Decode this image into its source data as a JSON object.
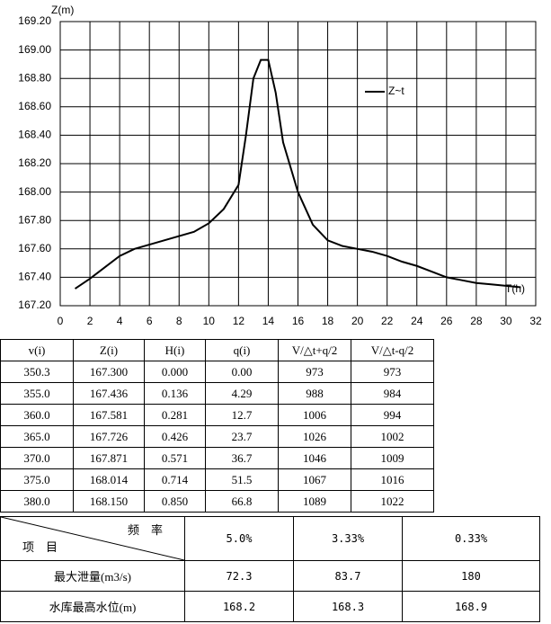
{
  "chart_data": {
    "type": "line",
    "ylabel": "Z(m)",
    "xlabel": "T(h)",
    "x": [
      1,
      2,
      3,
      4,
      5,
      6,
      7,
      8,
      9,
      10,
      11,
      12,
      12.5,
      13,
      13.5,
      14,
      14.5,
      15,
      16,
      17,
      18,
      19,
      20,
      21,
      22,
      23,
      24,
      25,
      26,
      27,
      28,
      29,
      30,
      31
    ],
    "series": [
      {
        "name": "Z~t",
        "color": "#000000",
        "values": [
          167.32,
          167.39,
          167.47,
          167.55,
          167.6,
          167.63,
          167.66,
          167.69,
          167.72,
          167.78,
          167.88,
          168.05,
          168.4,
          168.8,
          168.93,
          168.93,
          168.7,
          168.35,
          168.0,
          167.77,
          167.66,
          167.62,
          167.6,
          167.58,
          167.55,
          167.51,
          167.48,
          167.44,
          167.4,
          167.38,
          167.36,
          167.35,
          167.34,
          167.33
        ]
      }
    ],
    "xlim": [
      0,
      32
    ],
    "xticks": [
      0,
      2,
      4,
      6,
      8,
      10,
      12,
      14,
      16,
      18,
      20,
      22,
      24,
      26,
      28,
      30,
      32
    ],
    "ylim": [
      167.2,
      169.2
    ],
    "yticks": [
      {
        "value": 167.2,
        "label": "167.20"
      },
      {
        "value": 167.4,
        "label": "167.40"
      },
      {
        "value": 167.6,
        "label": "167.60"
      },
      {
        "value": 167.8,
        "label": "167.80"
      },
      {
        "value": 168.0,
        "label": "168.00"
      },
      {
        "value": 168.2,
        "label": "168.20"
      },
      {
        "value": 168.4,
        "label": "168.40"
      },
      {
        "value": 168.6,
        "label": "168.60"
      },
      {
        "value": 168.8,
        "label": "168.80"
      },
      {
        "value": 169.0,
        "label": "169.00"
      },
      {
        "value": 169.2,
        "label": "169.20"
      }
    ],
    "grid": true,
    "legend": "upper right"
  },
  "table": {
    "header": [
      "v(i)",
      "Z(i)",
      "H(i)",
      "q(i)",
      "V/△t+q/2",
      "V/△t-q/2"
    ],
    "rows": [
      [
        "350.3",
        "167.300",
        "0.000",
        "0.00",
        "973",
        "973"
      ],
      [
        "355.0",
        "167.436",
        "0.136",
        "4.29",
        "988",
        "984"
      ],
      [
        "360.0",
        "167.581",
        "0.281",
        "12.7",
        "1006",
        "994"
      ],
      [
        "365.0",
        "167.726",
        "0.426",
        "23.7",
        "1026",
        "1002"
      ],
      [
        "370.0",
        "167.871",
        "0.571",
        "36.7",
        "1046",
        "1009"
      ],
      [
        "375.0",
        "168.014",
        "0.714",
        "51.5",
        "1067",
        "1016"
      ],
      [
        "380.0",
        "168.150",
        "0.850",
        "66.8",
        "1089",
        "1022"
      ]
    ]
  },
  "summary": {
    "corner_top": "频　率",
    "corner_bottom": "项　目",
    "columns": [
      "5.0%",
      "3.33%",
      "0.33%"
    ],
    "rows": [
      {
        "label": "最大泄量(m3/s)",
        "cells": [
          "72.3",
          "83.7",
          "180"
        ]
      },
      {
        "label": "水库最高水位(m)",
        "cells": [
          "168.2",
          "168.3",
          "168.9"
        ]
      }
    ]
  }
}
